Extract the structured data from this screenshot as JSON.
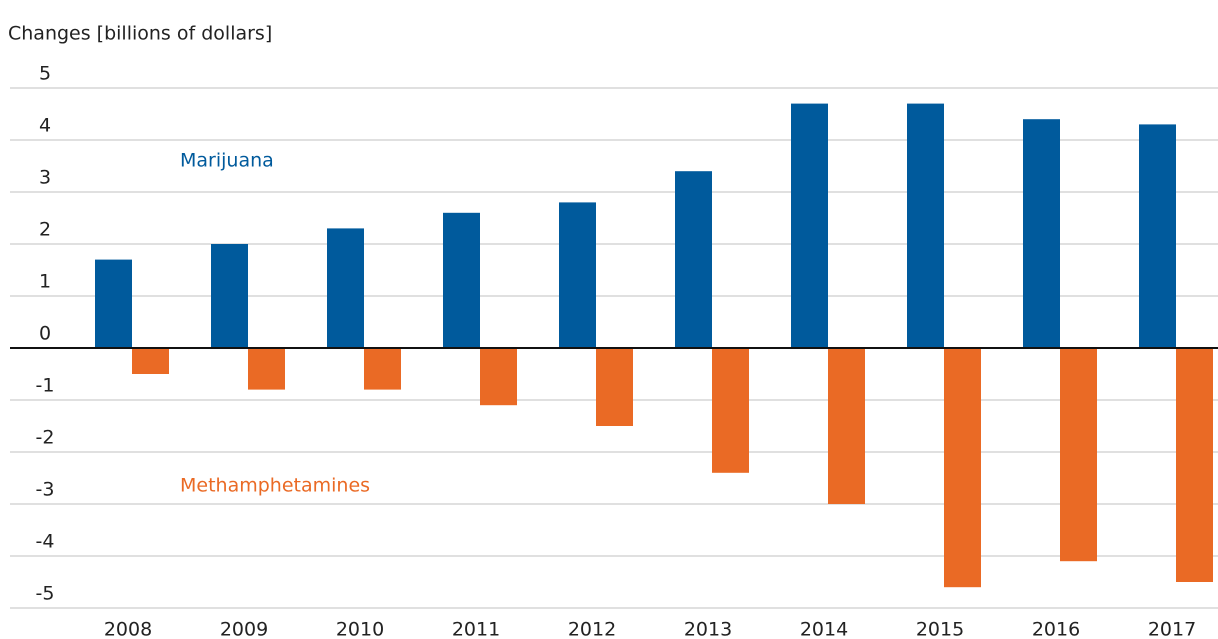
{
  "chart_data": {
    "type": "bar",
    "y_label": "Changes [billions of dollars]",
    "categories": [
      "2008",
      "2009",
      "2010",
      "2011",
      "2012",
      "2013",
      "2014",
      "2015",
      "2016",
      "2017"
    ],
    "series": [
      {
        "name": "Marijuana",
        "color": "#005a9c",
        "values": [
          1.7,
          2.0,
          2.3,
          2.6,
          2.8,
          3.4,
          4.7,
          4.7,
          4.4,
          4.3
        ]
      },
      {
        "name": "Methamphetamines",
        "color": "#ea6a25",
        "values": [
          -0.5,
          -0.8,
          -0.8,
          -1.1,
          -1.5,
          -2.4,
          -3.0,
          -4.6,
          -4.1,
          -4.5
        ]
      }
    ],
    "ylim": [
      -5,
      5
    ],
    "yticks": [
      -5,
      -4,
      -3,
      -2,
      -1,
      0,
      1,
      2,
      3,
      4,
      5
    ],
    "grid": true
  }
}
